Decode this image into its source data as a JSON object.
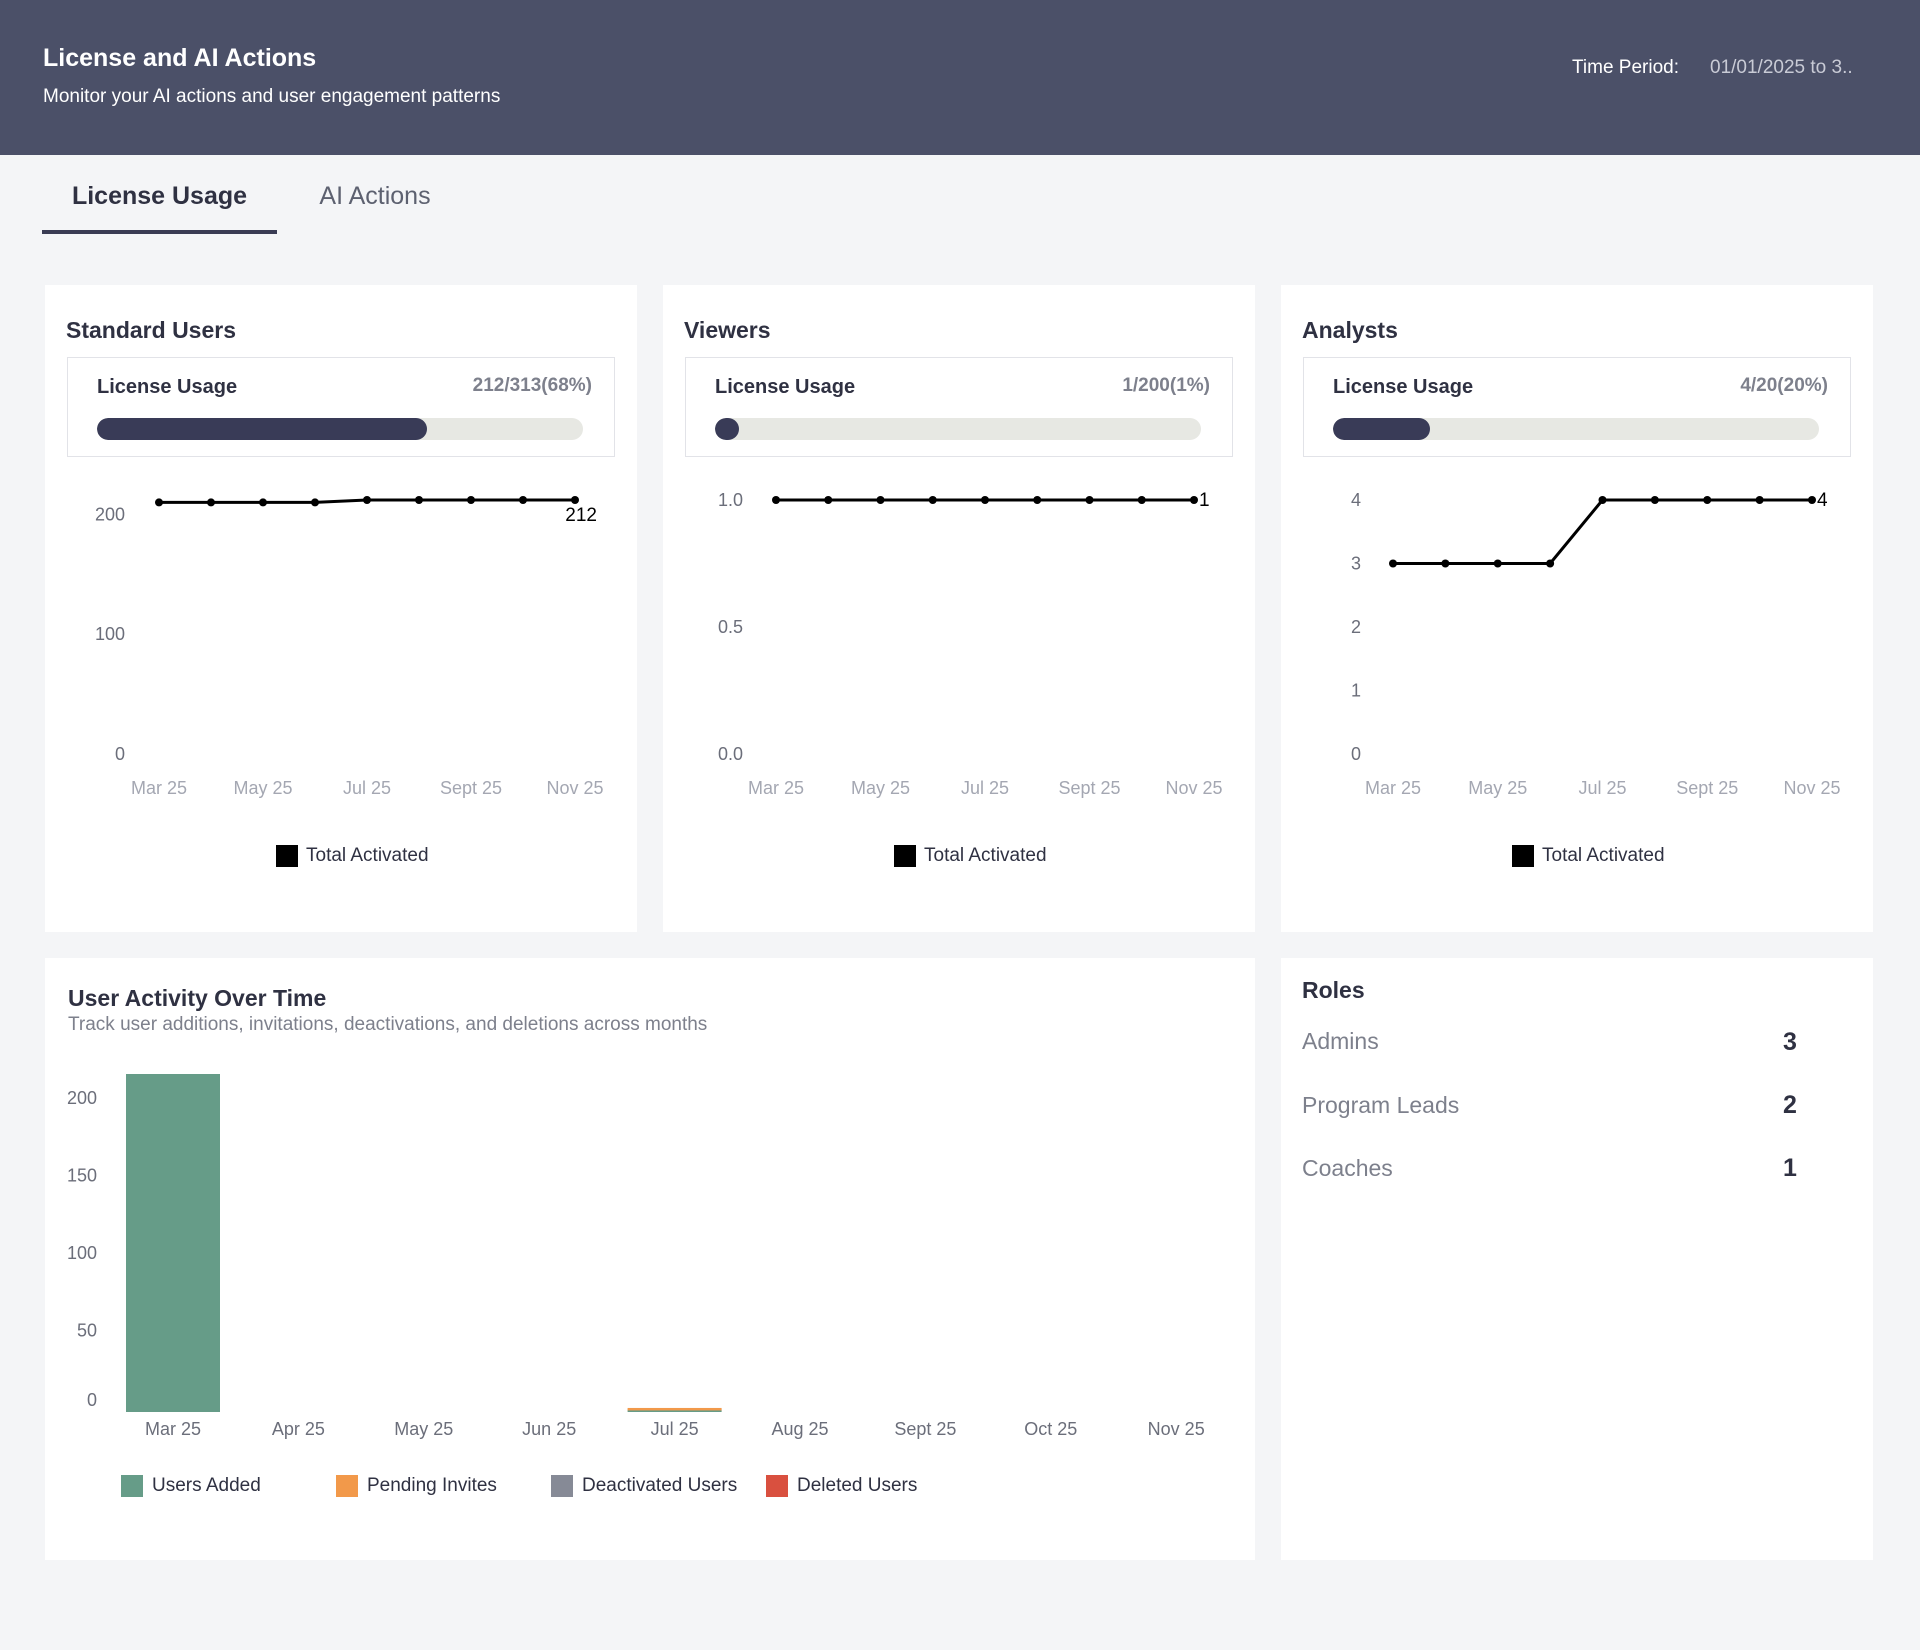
{
  "header": {
    "title": "License and AI Actions",
    "subtitle": "Monitor your AI actions and user engagement patterns",
    "time_period_label": "Time Period:",
    "time_period_value": "01/01/2025 to 3.."
  },
  "tabs": [
    {
      "label": "License Usage",
      "active": true
    },
    {
      "label": "AI Actions",
      "active": false
    }
  ],
  "colors": {
    "header_bg": "#4b5068",
    "accent": "#393b57",
    "users_added": "#669c88",
    "pending_invites": "#f2994a",
    "deactivated_users": "#868a96",
    "deleted_users": "#d9503f"
  },
  "license_cards": [
    {
      "title": "Standard Users",
      "usage_label": "License Usage",
      "usage_value": "212/313(68%)",
      "usage_fraction": 0.68,
      "legend": "Total Activated",
      "end_label": "212"
    },
    {
      "title": "Viewers",
      "usage_label": "License Usage",
      "usage_value": "1/200(1%)",
      "usage_fraction": 0.01,
      "legend": "Total Activated",
      "end_label": "1"
    },
    {
      "title": "Analysts",
      "usage_label": "License Usage",
      "usage_value": "4/20(20%)",
      "usage_fraction": 0.2,
      "legend": "Total Activated",
      "end_label": "4"
    }
  ],
  "activity": {
    "title": "User Activity Over Time",
    "subtitle": "Track user additions, invitations, deactivations, and deletions across months",
    "legend": [
      {
        "name": "Users Added",
        "color": "#669c88"
      },
      {
        "name": "Pending Invites",
        "color": "#f2994a"
      },
      {
        "name": "Deactivated Users",
        "color": "#868a96"
      },
      {
        "name": "Deleted Users",
        "color": "#d9503f"
      }
    ]
  },
  "roles": {
    "title": "Roles",
    "items": [
      {
        "label": "Admins",
        "count": "3"
      },
      {
        "label": "Program Leads",
        "count": "2"
      },
      {
        "label": "Coaches",
        "count": "1"
      }
    ]
  },
  "chart_data": [
    {
      "type": "line",
      "title": "Standard Users",
      "x": [
        "Mar 25",
        "Apr 25",
        "May 25",
        "Jun 25",
        "Jul 25",
        "Aug 25",
        "Sept 25",
        "Oct 25",
        "Nov 25"
      ],
      "x_tick_labels": [
        "Mar 25",
        "May 25",
        "Jul 25",
        "Sept 25",
        "Nov 25"
      ],
      "series": [
        {
          "name": "Total Activated",
          "values": [
            210,
            210,
            210,
            210,
            212,
            212,
            212,
            212,
            212
          ]
        }
      ],
      "y_ticks": [
        "0",
        "100",
        "200"
      ],
      "ylim": [
        0,
        212
      ],
      "grid": false,
      "legend_position": "bottom"
    },
    {
      "type": "line",
      "title": "Viewers",
      "x": [
        "Mar 25",
        "Apr 25",
        "May 25",
        "Jun 25",
        "Jul 25",
        "Aug 25",
        "Sept 25",
        "Oct 25",
        "Nov 25"
      ],
      "x_tick_labels": [
        "Mar 25",
        "May 25",
        "Jul 25",
        "Sept 25",
        "Nov 25"
      ],
      "series": [
        {
          "name": "Total Activated",
          "values": [
            1,
            1,
            1,
            1,
            1,
            1,
            1,
            1,
            1
          ]
        }
      ],
      "y_ticks": [
        "0.0",
        "0.5",
        "1.0"
      ],
      "ylim": [
        0,
        1
      ],
      "grid": false,
      "legend_position": "bottom"
    },
    {
      "type": "line",
      "title": "Analysts",
      "x": [
        "Mar 25",
        "Apr 25",
        "May 25",
        "Jun 25",
        "Jul 25",
        "Aug 25",
        "Sept 25",
        "Oct 25",
        "Nov 25"
      ],
      "x_tick_labels": [
        "Mar 25",
        "May 25",
        "Jul 25",
        "Sept 25",
        "Nov 25"
      ],
      "series": [
        {
          "name": "Total Activated",
          "values": [
            3,
            3,
            3,
            3,
            4,
            4,
            4,
            4,
            4
          ]
        }
      ],
      "y_ticks": [
        "0",
        "1",
        "2",
        "3",
        "4"
      ],
      "ylim": [
        0,
        4
      ],
      "grid": false,
      "legend_position": "bottom"
    },
    {
      "type": "bar",
      "title": "User Activity Over Time",
      "categories": [
        "Mar 25",
        "Apr 25",
        "May 25",
        "Jun 25",
        "Jul 25",
        "Aug 25",
        "Sept 25",
        "Oct 25",
        "Nov 25"
      ],
      "series": [
        {
          "name": "Users Added",
          "values": [
            218,
            0,
            0,
            0,
            1,
            0,
            0,
            0,
            0
          ]
        },
        {
          "name": "Pending Invites",
          "values": [
            0,
            0,
            0,
            0,
            1,
            0,
            0,
            0,
            0
          ]
        },
        {
          "name": "Deactivated Users",
          "values": [
            0,
            0,
            0,
            0,
            0,
            0,
            0,
            0,
            0
          ]
        },
        {
          "name": "Deleted Users",
          "values": [
            0,
            0,
            0,
            0,
            0,
            0,
            0,
            0,
            0
          ]
        }
      ],
      "stacked": true,
      "y_ticks": [
        "0",
        "50",
        "100",
        "150",
        "200"
      ],
      "ylim": [
        0,
        218
      ],
      "grid": false,
      "legend_position": "bottom"
    }
  ]
}
